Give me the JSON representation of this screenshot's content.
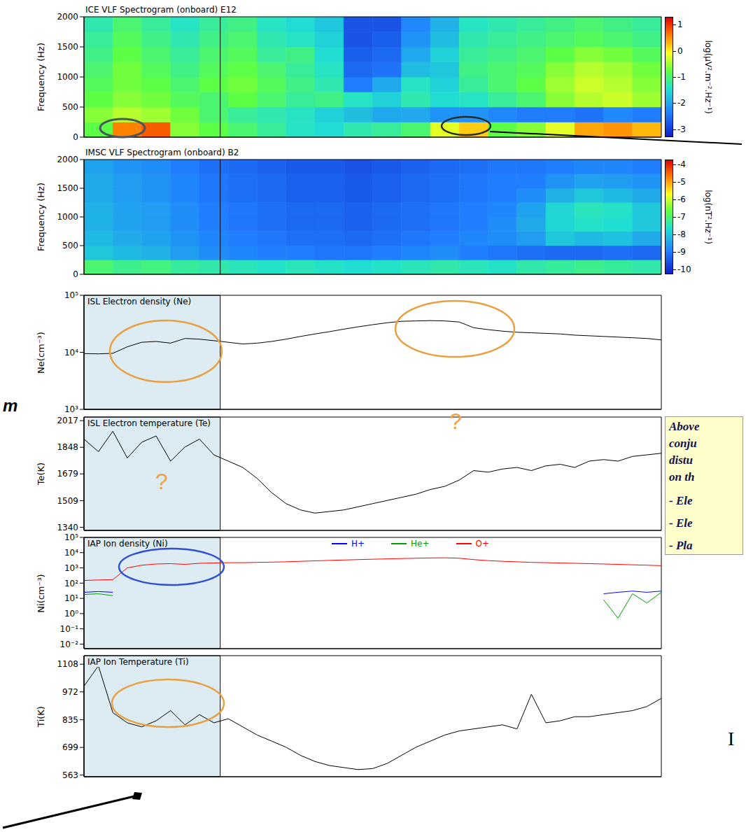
{
  "chart_data": [
    {
      "type": "heatmap",
      "title": "ICE VLF Spectrogram (onboard) E12",
      "y_label": "Frequency (Hz)",
      "xlim": [
        0,
        100
      ],
      "ylim": [
        0,
        2000
      ],
      "yticks": [
        0,
        500,
        1000,
        1500,
        2000
      ],
      "tick_labels": "y",
      "highlight": [
        0,
        23.6
      ],
      "x_edges": [
        0,
        5,
        10,
        15,
        20,
        25,
        30,
        35,
        40,
        45,
        50,
        55,
        60,
        65,
        70,
        75,
        80,
        85,
        90,
        95,
        100
      ],
      "y_edges": [
        0,
        250,
        500,
        750,
        1000,
        1250,
        1500,
        1750,
        2000
      ],
      "cells": [
        [
          -0.8,
          0.6,
          0.8,
          -0.6,
          -0.8,
          -1,
          -1.2,
          -1.4,
          -1.5,
          -1.3,
          -1.2,
          -1,
          -0.2,
          0.2,
          -0.8,
          -0.6,
          -0.2,
          0.4,
          0.5,
          0.3
        ],
        [
          -0.6,
          -0.4,
          -0.5,
          -0.7,
          -1,
          -1.2,
          -1.3,
          -1.4,
          -1.6,
          -1.8,
          -2,
          -2,
          -2.2,
          -2.2,
          -2.3,
          -2.4,
          -2.4,
          -2.5,
          -2.3,
          -2.4
        ],
        [
          -0.8,
          -0.6,
          -0.7,
          -0.9,
          -1,
          -0.8,
          -1,
          -1.2,
          -1.1,
          -1.4,
          -1.6,
          -1.3,
          -1.5,
          -1.4,
          -1.2,
          -1,
          -0.6,
          -0.4,
          -0.3,
          -0.5
        ],
        [
          -0.9,
          -0.7,
          -0.8,
          -1,
          -0.8,
          -0.7,
          -0.9,
          -1.1,
          -1.3,
          -2.4,
          -2,
          -1.4,
          -1.6,
          -1.2,
          -1,
          -0.8,
          -0.5,
          -0.3,
          -0.4,
          -0.6
        ],
        [
          -1,
          -0.7,
          -0.9,
          -1.1,
          -0.9,
          -0.8,
          -1,
          -1.2,
          -1.4,
          -2.6,
          -2.5,
          -1.8,
          -1.7,
          -1.1,
          -1,
          -0.9,
          -0.6,
          -0.4,
          -0.5,
          -0.7
        ],
        [
          -1.1,
          -0.8,
          -1,
          -1.2,
          -1,
          -0.9,
          -1.2,
          -1.1,
          -1.5,
          -2.7,
          -2.6,
          -2,
          -1.6,
          -1.2,
          -1.1,
          -1,
          -0.8,
          -0.6,
          -0.7,
          -0.9
        ],
        [
          -1.2,
          -0.9,
          -1.1,
          -1.3,
          -1.1,
          -1,
          -1.3,
          -1.4,
          -1.6,
          -2.8,
          -2.7,
          -2.2,
          -1.8,
          -1.3,
          -1.2,
          -1.1,
          -1,
          -0.9,
          -1,
          -1.1
        ],
        [
          -1.3,
          -1,
          -1.2,
          -1.4,
          -1.2,
          -1.1,
          -1.4,
          -1.5,
          -1.7,
          -2.8,
          -2.8,
          -2.3,
          -1.9,
          -1.4,
          -1.3,
          -1.2,
          -1.1,
          -1,
          -1.1,
          -1.2
        ]
      ],
      "colorbar": {
        "label": "log(µV².m⁻².Hz⁻¹)",
        "range": [
          -3.3,
          1.3
        ],
        "ticks": [
          1,
          0,
          -1,
          -2,
          -3
        ]
      }
    },
    {
      "type": "heatmap",
      "title": "IMSC VLF Spectrogram (onboard) B2",
      "y_label": "Frequency (Hz)",
      "xlim": [
        0,
        100
      ],
      "ylim": [
        0,
        2000
      ],
      "yticks": [
        0,
        500,
        1000,
        1500,
        2000
      ],
      "tick_labels": "y",
      "highlight": [
        0,
        23.6
      ],
      "x_edges": [
        0,
        5,
        10,
        15,
        20,
        25,
        30,
        35,
        40,
        45,
        50,
        55,
        60,
        65,
        70,
        75,
        80,
        85,
        90,
        95,
        100
      ],
      "y_edges": [
        0,
        250,
        500,
        750,
        1000,
        1250,
        1500,
        1750,
        2000
      ],
      "cells": [
        [
          -7,
          -7.2,
          -7.1,
          -7.3,
          -7.4,
          -7.5,
          -7.6,
          -7.5,
          -7.6,
          -7.7,
          -7.6,
          -7.5,
          -7.4,
          -7.5,
          -7.6,
          -7.4,
          -7.3,
          -7.2,
          -7.3,
          -7.4
        ],
        [
          -8,
          -8.2,
          -8.3,
          -8.6,
          -8.8,
          -8.9,
          -9,
          -9,
          -9.1,
          -9.1,
          -9,
          -8.9,
          -8.8,
          -9,
          -9.1,
          -9.2,
          -9.3,
          -9.3,
          -9.2,
          -9.3
        ],
        [
          -8.2,
          -8.4,
          -8.5,
          -8.7,
          -8.9,
          -9,
          -9.1,
          -9.2,
          -9.2,
          -9.3,
          -9.2,
          -9.1,
          -9,
          -8.9,
          -8.8,
          -8.6,
          -8,
          -8.2,
          -8.1,
          -8.4
        ],
        [
          -8.3,
          -8.5,
          -8.6,
          -8.8,
          -9,
          -9.1,
          -9.2,
          -9.3,
          -9.3,
          -9.4,
          -9.3,
          -9.2,
          -9.1,
          -9,
          -8.8,
          -8.4,
          -7.8,
          -7.6,
          -7.7,
          -8
        ],
        [
          -8.3,
          -8.5,
          -8.6,
          -8.8,
          -9,
          -9.1,
          -9.2,
          -9.3,
          -9.3,
          -9.4,
          -9.3,
          -9.2,
          -9.1,
          -9,
          -8.9,
          -8.5,
          -7.8,
          -7.5,
          -7.6,
          -8
        ],
        [
          -8.4,
          -8.6,
          -8.7,
          -8.9,
          -9.1,
          -9.2,
          -9.3,
          -9.4,
          -9.4,
          -9.5,
          -9.4,
          -9.3,
          -9.2,
          -9.1,
          -9,
          -8.8,
          -8.3,
          -8,
          -8.2,
          -8.4
        ],
        [
          -8.4,
          -8.6,
          -8.7,
          -8.9,
          -9.1,
          -9.2,
          -9.3,
          -9.4,
          -9.4,
          -9.5,
          -9.4,
          -9.3,
          -9.2,
          -9.1,
          -9,
          -9,
          -8.7,
          -8.5,
          -8.6,
          -8.7
        ],
        [
          -8.5,
          -8.7,
          -8.8,
          -9,
          -9.2,
          -9.3,
          -9.4,
          -9.5,
          -9.5,
          -9.6,
          -9.5,
          -9.4,
          -9.3,
          -9.2,
          -9.1,
          -9.1,
          -9,
          -8.9,
          -8.9,
          -9
        ]
      ],
      "colorbar": {
        "label": "log(nT².Hz⁻¹)",
        "range": [
          -10.3,
          -3.7
        ],
        "ticks": [
          -4,
          -5,
          -6,
          -7,
          -8,
          -9,
          -10
        ]
      }
    },
    {
      "type": "line",
      "title": "ISL Electron density (Ne)",
      "y_label": "Ne(cm⁻³)",
      "log": "y",
      "xlim": [
        0,
        100
      ],
      "ylim": [
        1000,
        100000
      ],
      "yticks": [
        {
          "value": 1000,
          "label": "10³"
        },
        {
          "value": 10000,
          "label": "10⁴"
        },
        {
          "value": 100000,
          "label": "10⁵"
        }
      ],
      "tick_labels": "y",
      "highlight": [
        0,
        23.6
      ],
      "x": [
        0,
        2.5,
        5,
        7.5,
        10,
        12.5,
        15,
        17.5,
        20,
        22.5,
        25,
        27.5,
        30,
        32.5,
        35,
        37.5,
        40,
        42.5,
        45,
        47.5,
        50,
        52.5,
        55,
        57.5,
        60,
        62.5,
        65,
        67.5,
        70,
        72.5,
        75,
        77.5,
        80,
        82.5,
        85,
        87.5,
        90,
        92.5,
        95,
        97.5,
        100
      ],
      "values": [
        9500,
        9400,
        9600,
        12500,
        15000,
        15500,
        14500,
        17500,
        17000,
        16000,
        15000,
        14000,
        14500,
        15500,
        17000,
        19000,
        21000,
        23000,
        25500,
        28000,
        30500,
        33000,
        35000,
        35500,
        36000,
        35500,
        34000,
        27000,
        25000,
        23500,
        22500,
        22000,
        21500,
        21000,
        20000,
        19500,
        19000,
        18500,
        18000,
        17500,
        16500
      ],
      "color": "#000000"
    },
    {
      "type": "line",
      "title": "ISL Electron temperature (Te)",
      "y_label": "Te(K)",
      "xlim": [
        0,
        100
      ],
      "ylim": [
        1320,
        2040
      ],
      "yticks": [
        1340,
        1509,
        1679,
        1848,
        2017
      ],
      "tick_labels": "y",
      "highlight": [
        0,
        23.6
      ],
      "x": [
        0,
        2.5,
        5,
        7.5,
        10,
        12.5,
        15,
        17.5,
        20,
        22.5,
        25,
        27.5,
        30,
        32.5,
        35,
        37.5,
        40,
        42.5,
        45,
        47.5,
        50,
        52.5,
        55,
        57.5,
        60,
        62.5,
        65,
        67.5,
        70,
        72.5,
        75,
        77.5,
        80,
        82.5,
        85,
        87.5,
        90,
        92.5,
        95,
        97.5,
        100
      ],
      "values": [
        1900,
        1820,
        1950,
        1780,
        1880,
        1920,
        1760,
        1850,
        1900,
        1800,
        1760,
        1720,
        1650,
        1560,
        1490,
        1450,
        1430,
        1440,
        1450,
        1470,
        1490,
        1510,
        1530,
        1550,
        1580,
        1600,
        1640,
        1700,
        1690,
        1710,
        1720,
        1700,
        1730,
        1740,
        1720,
        1760,
        1770,
        1760,
        1790,
        1800,
        1810
      ],
      "color": "#000000",
      "annotations": [
        {
          "text": "?",
          "color": "#f0a040"
        },
        {
          "text": "?",
          "color": "#f0a040"
        }
      ]
    },
    {
      "type": "line",
      "title": "IAP Ion density (Ni)",
      "y_label": "Ni(cm⁻³)",
      "log": "y",
      "xlim": [
        0,
        100
      ],
      "ylim": [
        0.005,
        100000
      ],
      "yticks": [
        {
          "value": 0.01,
          "label": "10⁻²"
        },
        {
          "value": 0.1,
          "label": "10⁻¹"
        },
        {
          "value": 1,
          "label": "10⁰"
        },
        {
          "value": 10,
          "label": "10¹"
        },
        {
          "value": 100,
          "label": "10²"
        },
        {
          "value": 1000,
          "label": "10³"
        },
        {
          "value": 10000,
          "label": "10⁴"
        },
        {
          "value": 100000,
          "label": "10⁵"
        }
      ],
      "tick_labels": "y",
      "highlight": [
        0,
        23.6
      ],
      "legend": "top",
      "x": [
        0,
        2.5,
        5,
        7.5,
        10,
        12.5,
        15,
        17.5,
        20,
        22.5,
        25,
        27.5,
        30,
        32.5,
        35,
        37.5,
        40,
        42.5,
        45,
        47.5,
        50,
        52.5,
        55,
        57.5,
        60,
        62.5,
        65,
        67.5,
        70,
        72.5,
        75,
        77.5,
        80,
        82.5,
        85,
        87.5,
        90,
        92.5,
        95,
        97.5,
        100
      ],
      "series": [
        {
          "name": "H+",
          "color": "#0000ff",
          "values": [
            25,
            28,
            25,
            null,
            null,
            null,
            null,
            null,
            null,
            null,
            null,
            null,
            null,
            null,
            null,
            null,
            null,
            null,
            null,
            null,
            null,
            null,
            null,
            null,
            null,
            null,
            null,
            null,
            null,
            null,
            null,
            null,
            null,
            null,
            null,
            null,
            20,
            25,
            30,
            25,
            30
          ]
        },
        {
          "name": "He+",
          "color": "#00a000",
          "values": [
            18,
            20,
            15,
            null,
            null,
            null,
            null,
            null,
            null,
            null,
            null,
            null,
            null,
            null,
            null,
            null,
            null,
            null,
            null,
            null,
            null,
            null,
            null,
            null,
            null,
            null,
            null,
            null,
            null,
            null,
            null,
            null,
            null,
            null,
            null,
            null,
            8,
            0.5,
            20,
            5,
            25
          ]
        },
        {
          "name": "O+",
          "color": "#ff0000",
          "values": [
            150,
            160,
            170,
            1000,
            1500,
            1800,
            1900,
            1700,
            2000,
            2100,
            2200,
            2200,
            2300,
            2400,
            2500,
            2700,
            2900,
            3100,
            3300,
            3500,
            3700,
            3900,
            4100,
            4300,
            4500,
            4600,
            4300,
            3500,
            3000,
            2700,
            2500,
            2300,
            2200,
            2100,
            2000,
            1900,
            1800,
            1700,
            1600,
            1500,
            1400
          ]
        }
      ]
    },
    {
      "type": "line",
      "title": "IAP Ion Temperature (Ti)",
      "y_label": "Ti(K)",
      "xlim": [
        0,
        100
      ],
      "ylim": [
        555,
        1150
      ],
      "yticks": [
        563,
        699,
        835,
        972,
        1108
      ],
      "tick_labels": "y",
      "highlight": [
        0,
        23.6
      ],
      "x": [
        0,
        2.5,
        5,
        7.5,
        10,
        12.5,
        15,
        17.5,
        20,
        22.5,
        25,
        27.5,
        30,
        32.5,
        35,
        37.5,
        40,
        42.5,
        45,
        47.5,
        50,
        52.5,
        55,
        57.5,
        60,
        62.5,
        65,
        67.5,
        70,
        72.5,
        75,
        77.5,
        80,
        82.5,
        85,
        87.5,
        90,
        92.5,
        95,
        97.5,
        100
      ],
      "values": [
        1000,
        1100,
        870,
        820,
        800,
        830,
        880,
        810,
        860,
        820,
        840,
        800,
        760,
        730,
        700,
        660,
        630,
        610,
        600,
        590,
        595,
        620,
        660,
        700,
        730,
        760,
        780,
        790,
        800,
        810,
        790,
        960,
        820,
        830,
        850,
        850,
        860,
        870,
        880,
        900,
        940
      ],
      "color": "#000000"
    }
  ],
  "text_box": {
    "lines": [
      "Above",
      "conju",
      "distu",
      "on th",
      "- Ele",
      "- Ele",
      "- Pla"
    ]
  },
  "fragments": [
    "m",
    "I"
  ]
}
